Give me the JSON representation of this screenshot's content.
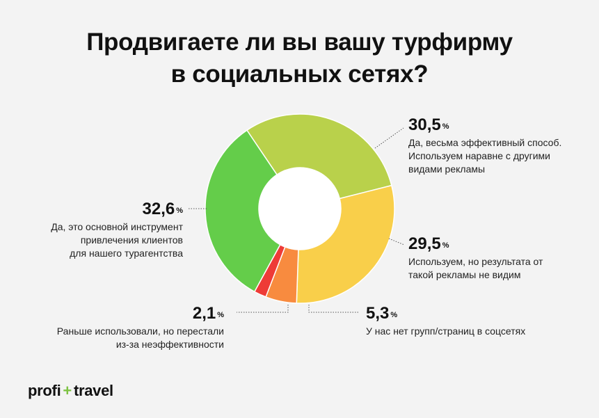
{
  "title": {
    "line1": "Продвигаете ли вы вашу турфирму",
    "line2": "в социальных сетях?"
  },
  "chart_data": {
    "type": "pie",
    "variant": "donut",
    "unit": "%",
    "slices": [
      {
        "value": 30.5,
        "value_label": "30,5",
        "label_lines": [
          "Да, весьма эффективный способ.",
          "Используем наравне с другими",
          "видами рекламы"
        ],
        "color": "#b9d14b"
      },
      {
        "value": 29.5,
        "value_label": "29,5",
        "label_lines": [
          "Используем, но результата от",
          "такой рекламы не видим"
        ],
        "color": "#f9cf4a"
      },
      {
        "value": 5.3,
        "value_label": "5,3",
        "label_lines": [
          "У нас нет групп/страниц в соцсетях"
        ],
        "color": "#f88b3f"
      },
      {
        "value": 2.1,
        "value_label": "2,1",
        "label_lines": [
          "Раньше использовали, но перестали",
          "из-за неэффективности"
        ],
        "color": "#ee3b37"
      },
      {
        "value": 32.6,
        "value_label": "32,6",
        "label_lines": [
          "Да, это основной инструмент",
          "привлечения клиентов",
          "для нашего турагентства"
        ],
        "color": "#64cd4a"
      }
    ]
  },
  "logo": {
    "left": "profi",
    "plus": "+",
    "right": "travel"
  }
}
